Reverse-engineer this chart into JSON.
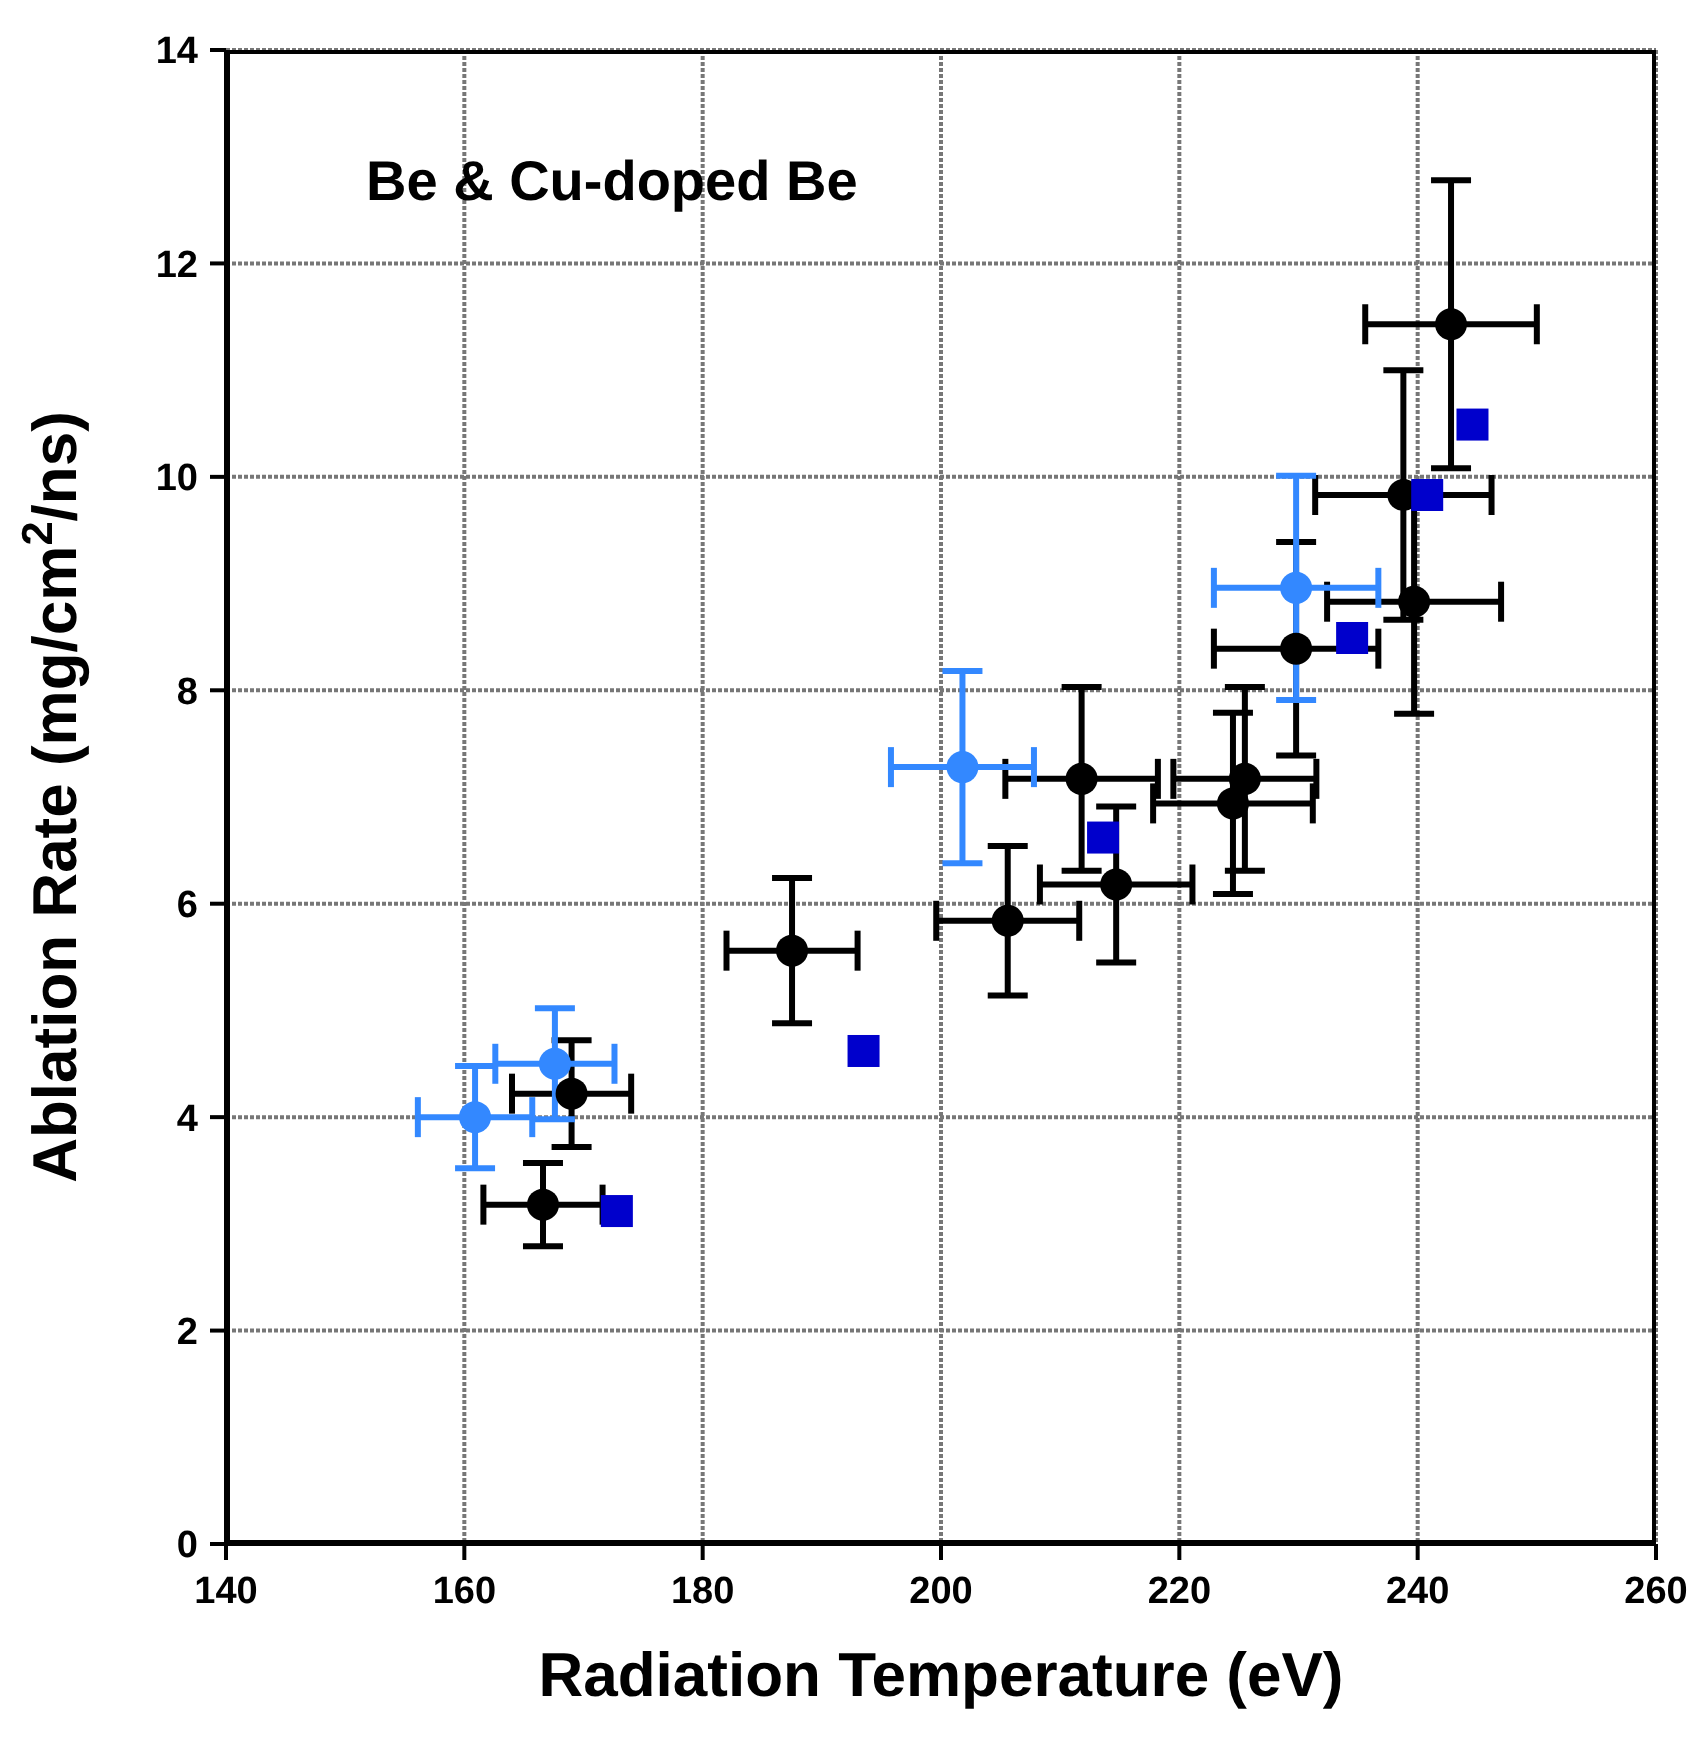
{
  "chart_data": {
    "type": "scatter",
    "title": "Be & Cu-doped Be",
    "xlabel": "Radiation Temperature (eV)",
    "ylabel": "Ablation Rate (mg/cm$^{2}$/ns)",
    "xlim": [
      140,
      260
    ],
    "xticks": [
      140,
      160,
      180,
      200,
      220,
      240,
      260
    ],
    "ylim": [
      0,
      14
    ],
    "yticks": [
      0,
      2,
      4,
      6,
      8,
      10,
      12,
      14
    ],
    "grid": true,
    "series": [
      {
        "color": "#000000",
        "marker": "circle",
        "x": [
          166.6,
          169,
          187.5,
          205.6,
          211.8,
          214.7,
          224.5,
          225.5,
          229.8,
          238.8,
          239.7,
          242.8
        ],
        "values": [
          3.18,
          4.22,
          5.56,
          5.84,
          7.17,
          6.18,
          6.94,
          7.17,
          8.39,
          9.83,
          8.83,
          11.43
        ],
        "errors": [
          0.39,
          0.5,
          0.68,
          0.7,
          0.86,
          0.73,
          0.85,
          0.86,
          1.0,
          1.17,
          1.05,
          1.35
        ],
        "xerrors": [
          5,
          5,
          5.5,
          6,
          6.4,
          6.4,
          6.7,
          6,
          6.9,
          7.4,
          7.3,
          7.2
        ]
      },
      {
        "color": "#3388ff",
        "marker": "circle",
        "x": [
          160.9,
          167.6,
          201.8,
          229.8
        ],
        "values": [
          4.0,
          4.5,
          7.28,
          8.96
        ],
        "errors": [
          0.48,
          0.52,
          0.9,
          1.05
        ],
        "xerrors": [
          4.8,
          5,
          6,
          6.9
        ]
      },
      {
        "color": "#0000cc",
        "marker": "square",
        "x": [
          172.8,
          193.5,
          213.6,
          234.5,
          240.8,
          244.6
        ],
        "values": [
          3.12,
          4.62,
          6.62,
          8.49,
          9.83,
          10.49
        ]
      }
    ]
  }
}
